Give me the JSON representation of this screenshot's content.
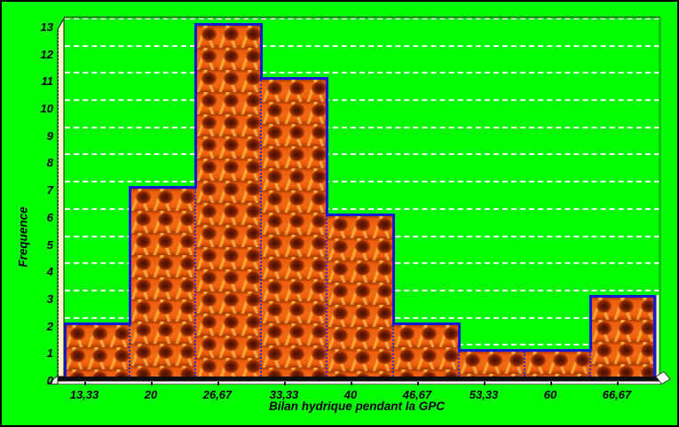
{
  "chart_data": {
    "type": "bar",
    "chart_kind": "histogram",
    "xlabel": "Bilan hydrique pendant la GPC",
    "ylabel": "Frequence",
    "categories": [
      "13,33",
      "20",
      "26,67",
      "33,33",
      "40",
      "46,67",
      "53,33",
      "60",
      "66,67"
    ],
    "x_tick_values": [
      13.33,
      20,
      26.67,
      33.33,
      40,
      46.67,
      53.33,
      60,
      66.67
    ],
    "bin_width": 6.67,
    "values": [
      2,
      7,
      13,
      11,
      6,
      2,
      1,
      1,
      3
    ],
    "y_ticks": [
      0,
      1,
      2,
      3,
      4,
      5,
      6,
      7,
      8,
      9,
      10,
      11,
      12,
      13
    ],
    "ylim": [
      0,
      13.4
    ],
    "grid": "horizontal white dashed lines at each integer frequency",
    "legend": false
  },
  "style": {
    "background": "#00fe00",
    "bar_fill_base": "#ee5c0c",
    "bar_envelope": "#1717d6",
    "bin_divider": "#3030bb",
    "gridline": "#ffffff",
    "y_axis_ribbon": "#ffffc6",
    "floor_ribbon": "#0e0e0e",
    "plot_border": "#008a00",
    "text_color": "#000000"
  }
}
